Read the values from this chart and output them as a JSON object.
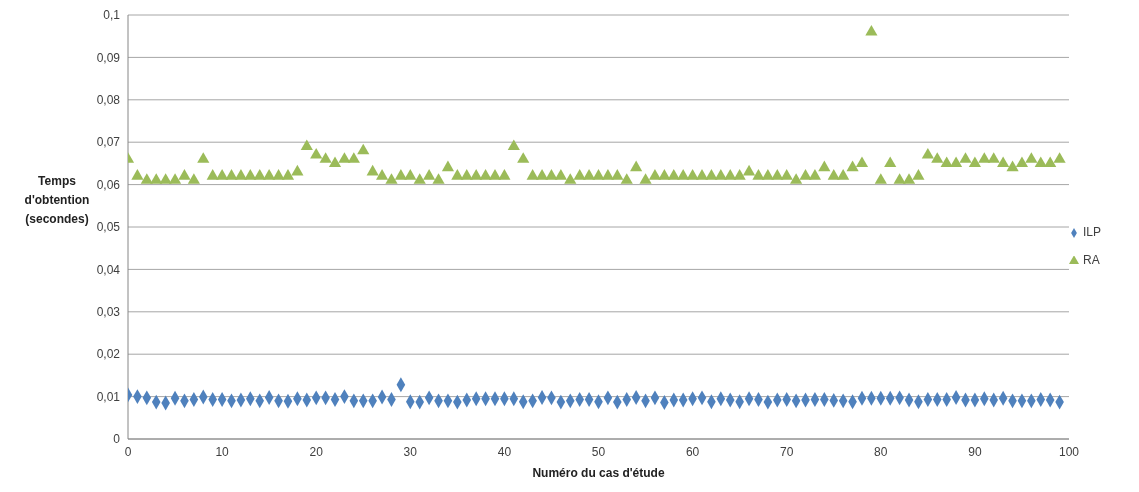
{
  "chart_data": {
    "type": "scatter",
    "xlabel": "Numéro du cas d'étude",
    "ylabel": "Temps d'obtention (secondes)",
    "x": [
      0,
      1,
      2,
      3,
      4,
      5,
      6,
      7,
      8,
      9,
      10,
      11,
      12,
      13,
      14,
      15,
      16,
      17,
      18,
      19,
      20,
      21,
      22,
      23,
      24,
      25,
      26,
      27,
      28,
      29,
      30,
      31,
      32,
      33,
      34,
      35,
      36,
      37,
      38,
      39,
      40,
      41,
      42,
      43,
      44,
      45,
      46,
      47,
      48,
      49,
      50,
      51,
      52,
      53,
      54,
      55,
      56,
      57,
      58,
      59,
      60,
      61,
      62,
      63,
      64,
      65,
      66,
      67,
      68,
      69,
      70,
      71,
      72,
      73,
      74,
      75,
      76,
      77,
      78,
      79,
      80,
      81,
      82,
      83,
      84,
      85,
      86,
      87,
      88,
      89,
      90,
      91,
      92,
      93,
      94,
      95,
      96,
      97,
      98,
      99
    ],
    "series": [
      {
        "name": "RA",
        "color": "#9bbb59",
        "marker": "triangle",
        "values": [
          0.066,
          0.062,
          0.061,
          0.061,
          0.061,
          0.061,
          0.062,
          0.061,
          0.066,
          0.062,
          0.062,
          0.062,
          0.062,
          0.062,
          0.062,
          0.062,
          0.062,
          0.062,
          0.063,
          0.069,
          0.067,
          0.066,
          0.065,
          0.066,
          0.066,
          0.068,
          0.063,
          0.062,
          0.061,
          0.062,
          0.062,
          0.061,
          0.062,
          0.061,
          0.064,
          0.062,
          0.062,
          0.062,
          0.062,
          0.062,
          0.062,
          0.069,
          0.066,
          0.062,
          0.062,
          0.062,
          0.062,
          0.061,
          0.062,
          0.062,
          0.062,
          0.062,
          0.062,
          0.061,
          0.064,
          0.061,
          0.062,
          0.062,
          0.062,
          0.062,
          0.062,
          0.062,
          0.062,
          0.062,
          0.062,
          0.062,
          0.063,
          0.062,
          0.062,
          0.062,
          0.062,
          0.061,
          0.062,
          0.062,
          0.064,
          0.062,
          0.062,
          0.064,
          0.065,
          0.096,
          0.061,
          0.065,
          0.061,
          0.061,
          0.062,
          0.067,
          0.066,
          0.065,
          0.065,
          0.066,
          0.065,
          0.066,
          0.066,
          0.065,
          0.064,
          0.065,
          0.066,
          0.065,
          0.065,
          0.066
        ]
      },
      {
        "name": "ILP",
        "color": "#4f81bd",
        "marker": "diamond",
        "values": [
          0.0104,
          0.01,
          0.0097,
          0.0087,
          0.0085,
          0.0096,
          0.009,
          0.0093,
          0.0099,
          0.0093,
          0.0093,
          0.009,
          0.0092,
          0.0095,
          0.009,
          0.0098,
          0.009,
          0.0089,
          0.0095,
          0.0092,
          0.0097,
          0.0097,
          0.0093,
          0.01,
          0.009,
          0.009,
          0.009,
          0.0099,
          0.0093,
          0.0128,
          0.0088,
          0.0087,
          0.0097,
          0.009,
          0.009,
          0.0087,
          0.0092,
          0.0095,
          0.0095,
          0.0095,
          0.0095,
          0.0095,
          0.0088,
          0.009,
          0.0098,
          0.0097,
          0.0087,
          0.009,
          0.0093,
          0.0093,
          0.0088,
          0.0097,
          0.0087,
          0.0093,
          0.0098,
          0.009,
          0.0097,
          0.0086,
          0.0092,
          0.0092,
          0.0095,
          0.0097,
          0.0088,
          0.0095,
          0.0092,
          0.0088,
          0.0095,
          0.0093,
          0.0087,
          0.0092,
          0.0093,
          0.009,
          0.0092,
          0.0093,
          0.0093,
          0.0091,
          0.009,
          0.0088,
          0.0096,
          0.0096,
          0.0096,
          0.0096,
          0.0097,
          0.0092,
          0.0088,
          0.0093,
          0.0093,
          0.0093,
          0.0098,
          0.0092,
          0.0092,
          0.0095,
          0.0092,
          0.0096,
          0.009,
          0.009,
          0.009,
          0.0093,
          0.0092,
          0.0087
        ]
      }
    ],
    "xlim": [
      0,
      100
    ],
    "xticks": [
      0,
      10,
      20,
      30,
      40,
      50,
      60,
      70,
      80,
      90,
      100
    ],
    "ylim": [
      0,
      0.1
    ],
    "yticks": [
      0,
      {
        "value": 0.01,
        "label": "0,01"
      },
      {
        "value": 0.02,
        "label": "0,02"
      },
      {
        "value": 0.03,
        "label": "0,03"
      },
      {
        "value": 0.04,
        "label": "0,04"
      },
      {
        "value": 0.05,
        "label": "0,05"
      },
      {
        "value": 0.06,
        "label": "0,06"
      },
      {
        "value": 0.07,
        "label": "0,07"
      },
      {
        "value": 0.08,
        "label": "0,08"
      },
      {
        "value": 0.09,
        "label": "0,09"
      },
      {
        "value": 0.1,
        "label": "0,1"
      }
    ],
    "grid": "y",
    "legend": "right"
  }
}
